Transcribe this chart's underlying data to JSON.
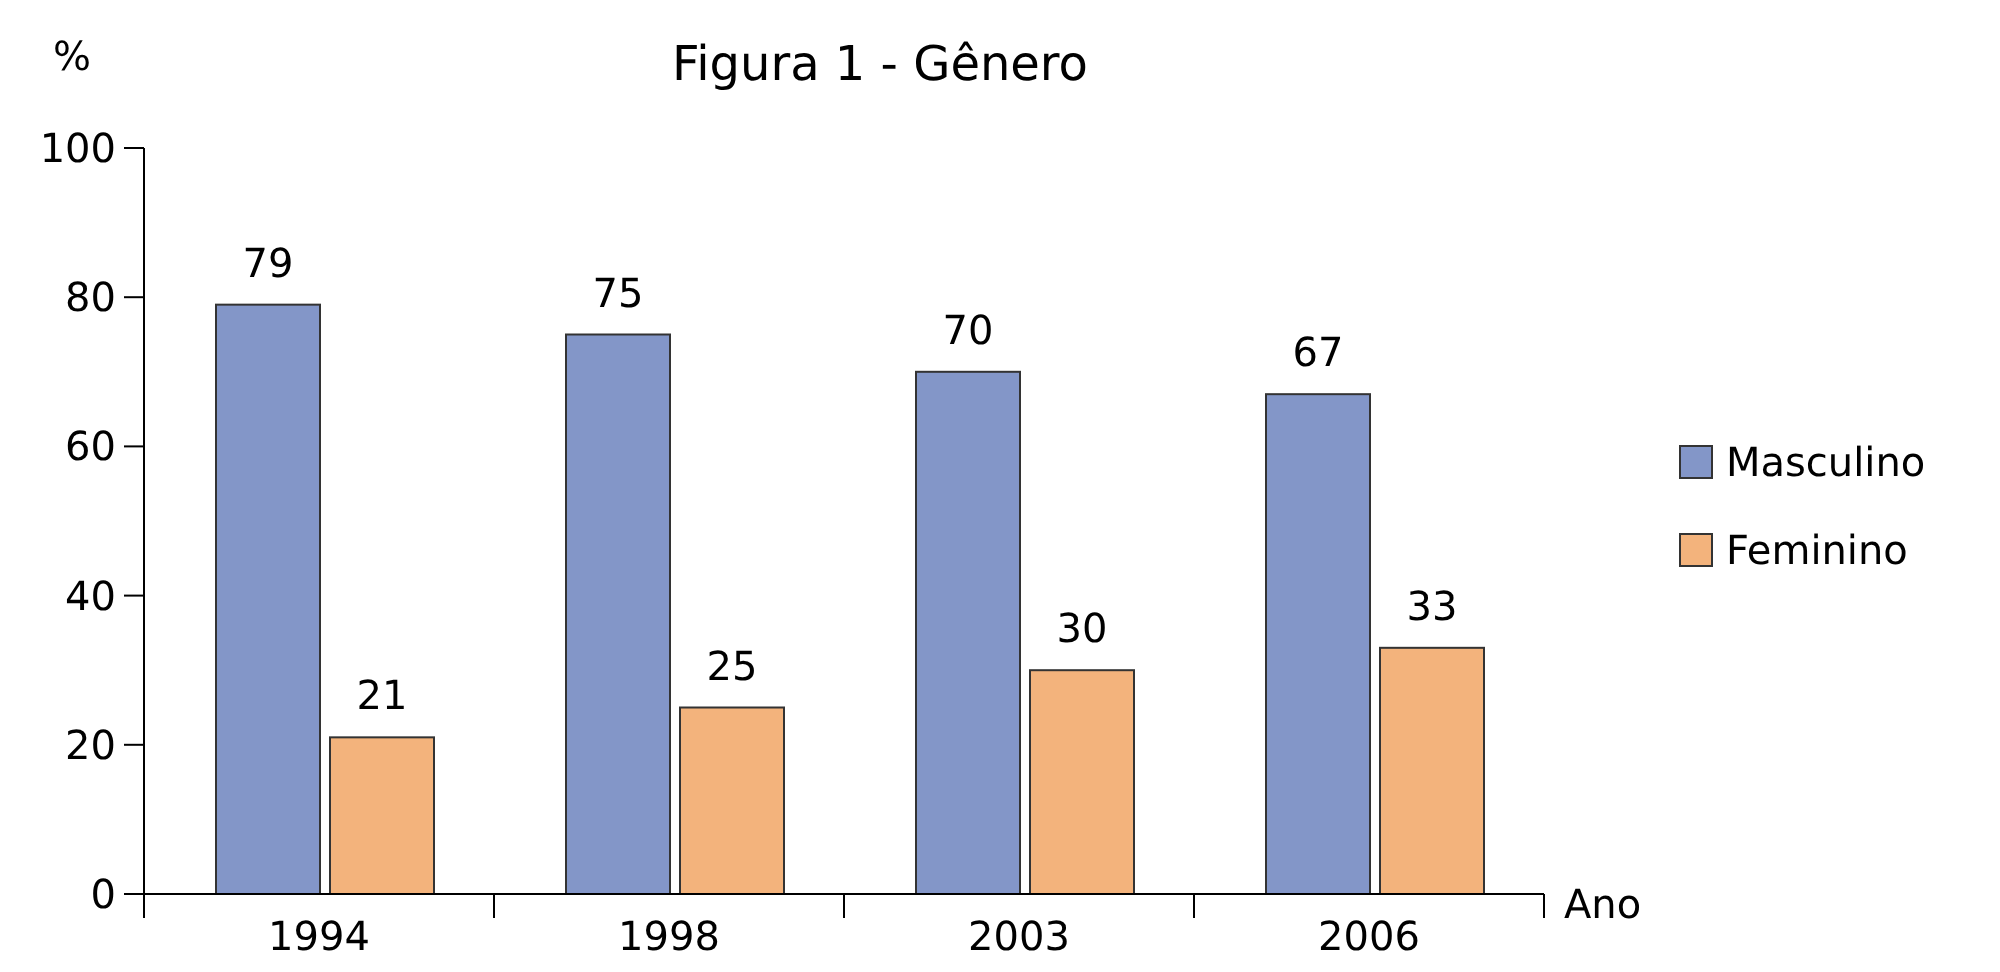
{
  "chart_data": {
    "type": "bar",
    "title": "Figura 1 - Gênero",
    "xlabel": "Ano",
    "ylabel": "%",
    "categories": [
      "1994",
      "1998",
      "2003",
      "2006"
    ],
    "series": [
      {
        "name": "Masculino",
        "color": "#8396c8",
        "values": [
          79,
          75,
          70,
          67
        ]
      },
      {
        "name": "Feminino",
        "color": "#f3b37c",
        "values": [
          21,
          25,
          30,
          33
        ]
      }
    ],
    "ylim": [
      0,
      100
    ],
    "yticks": [
      0,
      20,
      40,
      60,
      80,
      100
    ],
    "data_labels": true,
    "legend": "right",
    "grid": false
  }
}
